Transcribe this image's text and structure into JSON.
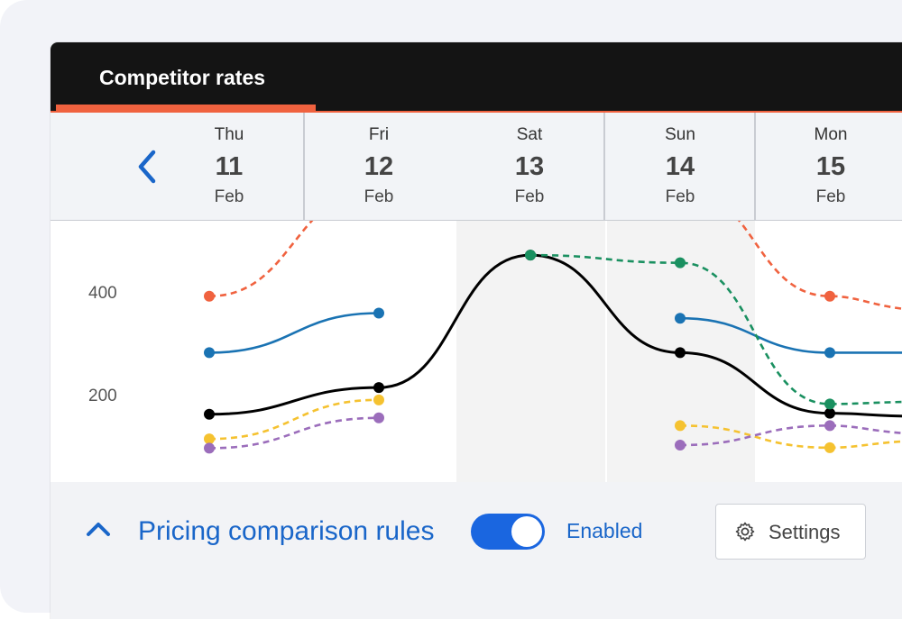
{
  "window": {
    "tab_title": "Competitor rates"
  },
  "days": [
    {
      "dow": "Thu",
      "num": "11",
      "month": "Feb"
    },
    {
      "dow": "Fri",
      "num": "12",
      "month": "Feb"
    },
    {
      "dow": "Sat",
      "num": "13",
      "month": "Feb"
    },
    {
      "dow": "Sun",
      "num": "14",
      "month": "Feb"
    },
    {
      "dow": "Mon",
      "num": "15",
      "month": "Feb"
    }
  ],
  "chart_data": {
    "type": "line",
    "categories": [
      "Thu 11",
      "Fri 12",
      "Sat 13",
      "Sun 14",
      "Mon 15"
    ],
    "y_ticks": [
      "400",
      "200"
    ],
    "ylim": [
      80,
      560
    ],
    "grid": false,
    "weekend_shading": [
      "Sat 13",
      "Sun 14"
    ],
    "series": [
      {
        "color": "#f0623f",
        "style": "dashed",
        "values": [
          390,
          600,
          null,
          600,
          390
        ],
        "extends_right": 360
      },
      {
        "color": "#1a73b3",
        "style": "solid",
        "values": [
          280,
          357,
          null,
          347,
          280
        ],
        "extends_right": 280
      },
      {
        "color": "#000000",
        "style": "solid",
        "values": [
          160,
          212,
          470,
          280,
          162
        ],
        "extends_right": 155
      },
      {
        "color": "#1a9060",
        "style": "dashed",
        "values": [
          null,
          null,
          470,
          455,
          180
        ],
        "extends_right": 185
      },
      {
        "color": "#f5c230",
        "style": "dashed",
        "values": [
          112,
          188,
          null,
          138,
          95
        ],
        "extends_right": 110
      },
      {
        "color": "#9b6dbb",
        "style": "dashed",
        "values": [
          94,
          153,
          null,
          100,
          138
        ],
        "extends_right": 120
      }
    ]
  },
  "footer": {
    "rules_title": "Pricing comparison rules",
    "toggle_label": "Enabled",
    "toggle_on": true,
    "settings_label": "Settings",
    "accent_color": "#1a66c9"
  }
}
